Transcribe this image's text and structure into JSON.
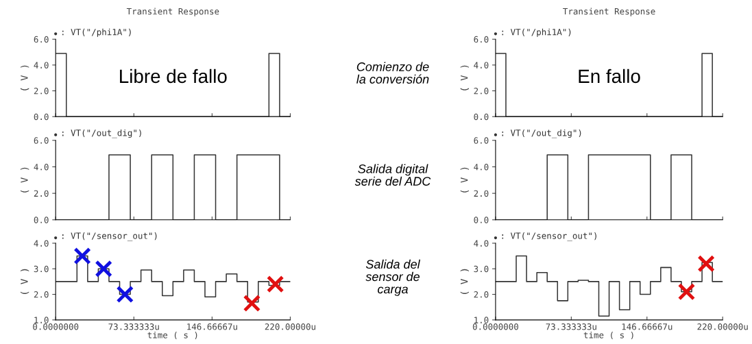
{
  "chart_data": [
    {
      "type": "step",
      "title": "Transient Response",
      "ylabel": "( V )",
      "xlim": [
        0,
        220
      ],
      "ylim": [
        0,
        6
      ],
      "tick_labels": "y",
      "grid": false,
      "xticks": [
        {
          "value": 0,
          "label": null
        },
        {
          "value": 73.333333,
          "label": null
        },
        {
          "value": 146.66667,
          "label": null
        },
        {
          "value": 220,
          "label": null
        }
      ],
      "yticks": [
        {
          "value": 0,
          "label": "0.0"
        },
        {
          "value": 2,
          "label": "2.0"
        },
        {
          "value": 4,
          "label": "4.0"
        },
        {
          "value": 6,
          "label": "6.0"
        }
      ],
      "annotations": [
        "Libre de fallo",
        "Comienzo de\nla conversión"
      ],
      "series": [
        {
          "name": ": VT(\"/phi1A\")",
          "color": "#333333",
          "x": [
            0,
            10,
            200,
            210,
            220
          ],
          "values": [
            4.9,
            0,
            4.9,
            0,
            0
          ]
        }
      ]
    },
    {
      "type": "step",
      "title": "Transient Response",
      "ylabel": "( V )",
      "xlim": [
        0,
        220
      ],
      "ylim": [
        0,
        6
      ],
      "tick_labels": "y",
      "grid": false,
      "xticks": [
        {
          "value": 0,
          "label": null
        },
        {
          "value": 73.333333,
          "label": null
        },
        {
          "value": 146.66667,
          "label": null
        },
        {
          "value": 220,
          "label": null
        }
      ],
      "yticks": [
        {
          "value": 0,
          "label": "0.0"
        },
        {
          "value": 2,
          "label": "2.0"
        },
        {
          "value": 4,
          "label": "4.0"
        },
        {
          "value": 6,
          "label": "6.0"
        }
      ],
      "annotations": [
        "En fallo"
      ],
      "series": [
        {
          "name": ": VT(\"/phi1A\")",
          "color": "#333333",
          "x": [
            0,
            10,
            200,
            210,
            220
          ],
          "values": [
            4.9,
            0,
            4.9,
            0,
            0
          ]
        }
      ]
    },
    {
      "type": "step",
      "ylabel": "( V )",
      "xlim": [
        0,
        220
      ],
      "ylim": [
        0,
        6
      ],
      "tick_labels": "y",
      "grid": false,
      "xticks": [
        {
          "value": 0,
          "label": null
        },
        {
          "value": 73.333333,
          "label": null
        },
        {
          "value": 146.66667,
          "label": null
        },
        {
          "value": 220,
          "label": null
        }
      ],
      "yticks": [
        {
          "value": 0,
          "label": "0.0"
        },
        {
          "value": 2,
          "label": "2.0"
        },
        {
          "value": 4,
          "label": "4.0"
        },
        {
          "value": 6,
          "label": "6.0"
        }
      ],
      "annotations": [
        "Salida digital\nserie del ADC"
      ],
      "series": [
        {
          "name": ": VT(\"/out_dig\")",
          "color": "#333333",
          "x": [
            0,
            50,
            70,
            90,
            110,
            130,
            150,
            170,
            210,
            220
          ],
          "values": [
            0,
            4.9,
            0,
            4.9,
            0,
            4.9,
            0,
            4.9,
            0,
            0
          ]
        }
      ]
    },
    {
      "type": "step",
      "ylabel": "( V )",
      "xlim": [
        0,
        220
      ],
      "ylim": [
        0,
        6
      ],
      "tick_labels": "y",
      "grid": false,
      "xticks": [
        {
          "value": 0,
          "label": null
        },
        {
          "value": 73.333333,
          "label": null
        },
        {
          "value": 146.66667,
          "label": null
        },
        {
          "value": 220,
          "label": null
        }
      ],
      "yticks": [
        {
          "value": 0,
          "label": "0.0"
        },
        {
          "value": 2,
          "label": "2.0"
        },
        {
          "value": 4,
          "label": "4.0"
        },
        {
          "value": 6,
          "label": "6.0"
        }
      ],
      "series": [
        {
          "name": ": VT(\"/out_dig\")",
          "color": "#333333",
          "x": [
            0,
            50,
            70,
            90,
            150,
            170,
            190,
            220
          ],
          "values": [
            0,
            4.9,
            0,
            4.9,
            0,
            4.9,
            0,
            0
          ]
        }
      ]
    },
    {
      "type": "step",
      "xlabel": "time ( s )",
      "ylabel": "( V )",
      "xlim": [
        0,
        220
      ],
      "ylim": [
        1,
        4
      ],
      "grid": false,
      "xticks": [
        {
          "value": 0,
          "label": "0.0000000"
        },
        {
          "value": 73.333333,
          "label": "73.333333u"
        },
        {
          "value": 146.66667,
          "label": "146.66667u"
        },
        {
          "value": 220,
          "label": "220.00000u"
        }
      ],
      "yticks": [
        {
          "value": 1,
          "label": "1.0"
        },
        {
          "value": 2,
          "label": "2.0"
        },
        {
          "value": 3,
          "label": "3.0"
        },
        {
          "value": 4,
          "label": "4.0"
        }
      ],
      "annotations": [
        "Salida del\nsensor de\ncarga"
      ],
      "series": [
        {
          "name": ": VT(\"/sensor_out\")",
          "color": "#333333",
          "x": [
            0,
            20,
            30,
            40,
            50,
            60,
            70,
            80,
            90,
            100,
            110,
            120,
            130,
            140,
            150,
            160,
            170,
            180,
            190,
            200,
            210,
            220
          ],
          "values": [
            2.5,
            3.5,
            2.5,
            3.0,
            2.5,
            2.0,
            2.5,
            2.95,
            2.5,
            1.95,
            2.5,
            2.95,
            2.5,
            1.9,
            2.5,
            2.8,
            2.5,
            1.7,
            2.5,
            2.35,
            2.5,
            2.5
          ]
        },
        {
          "type": "scatter",
          "marker": "cross",
          "color": "#1010e0",
          "x": [
            25,
            45,
            65
          ],
          "values": [
            3.5,
            3.0,
            2.0
          ]
        },
        {
          "type": "scatter",
          "marker": "cross",
          "color": "#e01010",
          "x": [
            184,
            206
          ],
          "values": [
            1.65,
            2.4
          ]
        }
      ]
    },
    {
      "type": "step",
      "xlabel": "time ( s )",
      "ylabel": "( V )",
      "xlim": [
        0,
        220
      ],
      "ylim": [
        1,
        4
      ],
      "grid": false,
      "xticks": [
        {
          "value": 0,
          "label": "0.0000000"
        },
        {
          "value": 73.333333,
          "label": "73.333333u"
        },
        {
          "value": 146.66667,
          "label": "146.66667u"
        },
        {
          "value": 220,
          "label": "220.00000u"
        }
      ],
      "yticks": [
        {
          "value": 1,
          "label": "1.0"
        },
        {
          "value": 2,
          "label": "2.0"
        },
        {
          "value": 3,
          "label": "3.0"
        },
        {
          "value": 4,
          "label": "4.0"
        }
      ],
      "series": [
        {
          "name": ": VT(\"/sensor_out\")",
          "color": "#333333",
          "x": [
            0,
            20,
            30,
            40,
            50,
            60,
            70,
            80,
            90,
            100,
            110,
            120,
            130,
            140,
            150,
            160,
            170,
            180,
            190,
            200,
            210,
            220
          ],
          "values": [
            2.5,
            3.5,
            2.5,
            2.85,
            2.5,
            1.75,
            2.5,
            2.55,
            2.5,
            1.15,
            2.5,
            1.4,
            2.5,
            2.0,
            2.5,
            3.05,
            2.5,
            2.1,
            2.5,
            3.25,
            2.5,
            2.5
          ]
        },
        {
          "type": "scatter",
          "marker": "cross",
          "color": "#e01010",
          "x": [
            185,
            204
          ],
          "values": [
            2.1,
            3.2
          ]
        }
      ]
    }
  ]
}
